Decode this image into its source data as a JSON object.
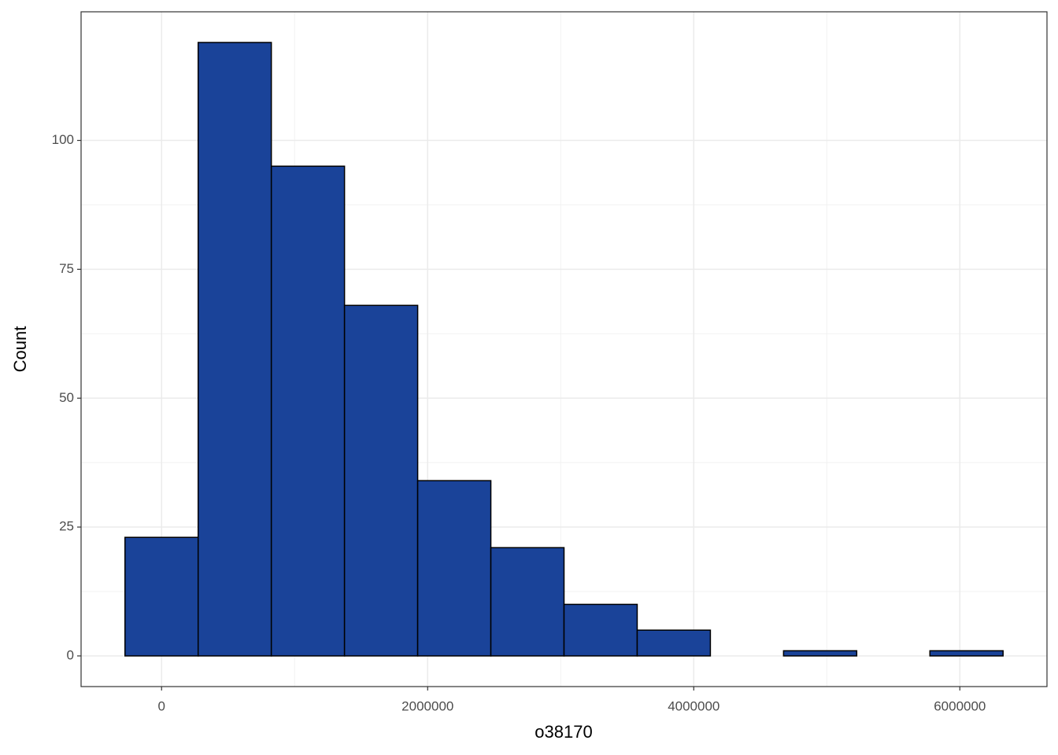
{
  "chart_data": {
    "type": "histogram",
    "x_label": "o38170",
    "y_label": "Count",
    "bins": [
      -275000,
      275000,
      825000,
      1375000,
      1925000,
      2475000,
      3025000,
      3575000,
      4125000,
      4675000,
      5225000,
      5775000,
      6325000
    ],
    "values": [
      23,
      119,
      95,
      68,
      34,
      21,
      10,
      5,
      0,
      1,
      0,
      1
    ],
    "color": "#1a4399",
    "edge_color": "#000000",
    "xlim": [
      -605000,
      6655000
    ],
    "ylim": [
      -5.95,
      124.95
    ],
    "xticks": [
      0,
      2000000,
      4000000,
      6000000
    ],
    "yticks": [
      0,
      25,
      50,
      75,
      100
    ],
    "grid": true
  }
}
